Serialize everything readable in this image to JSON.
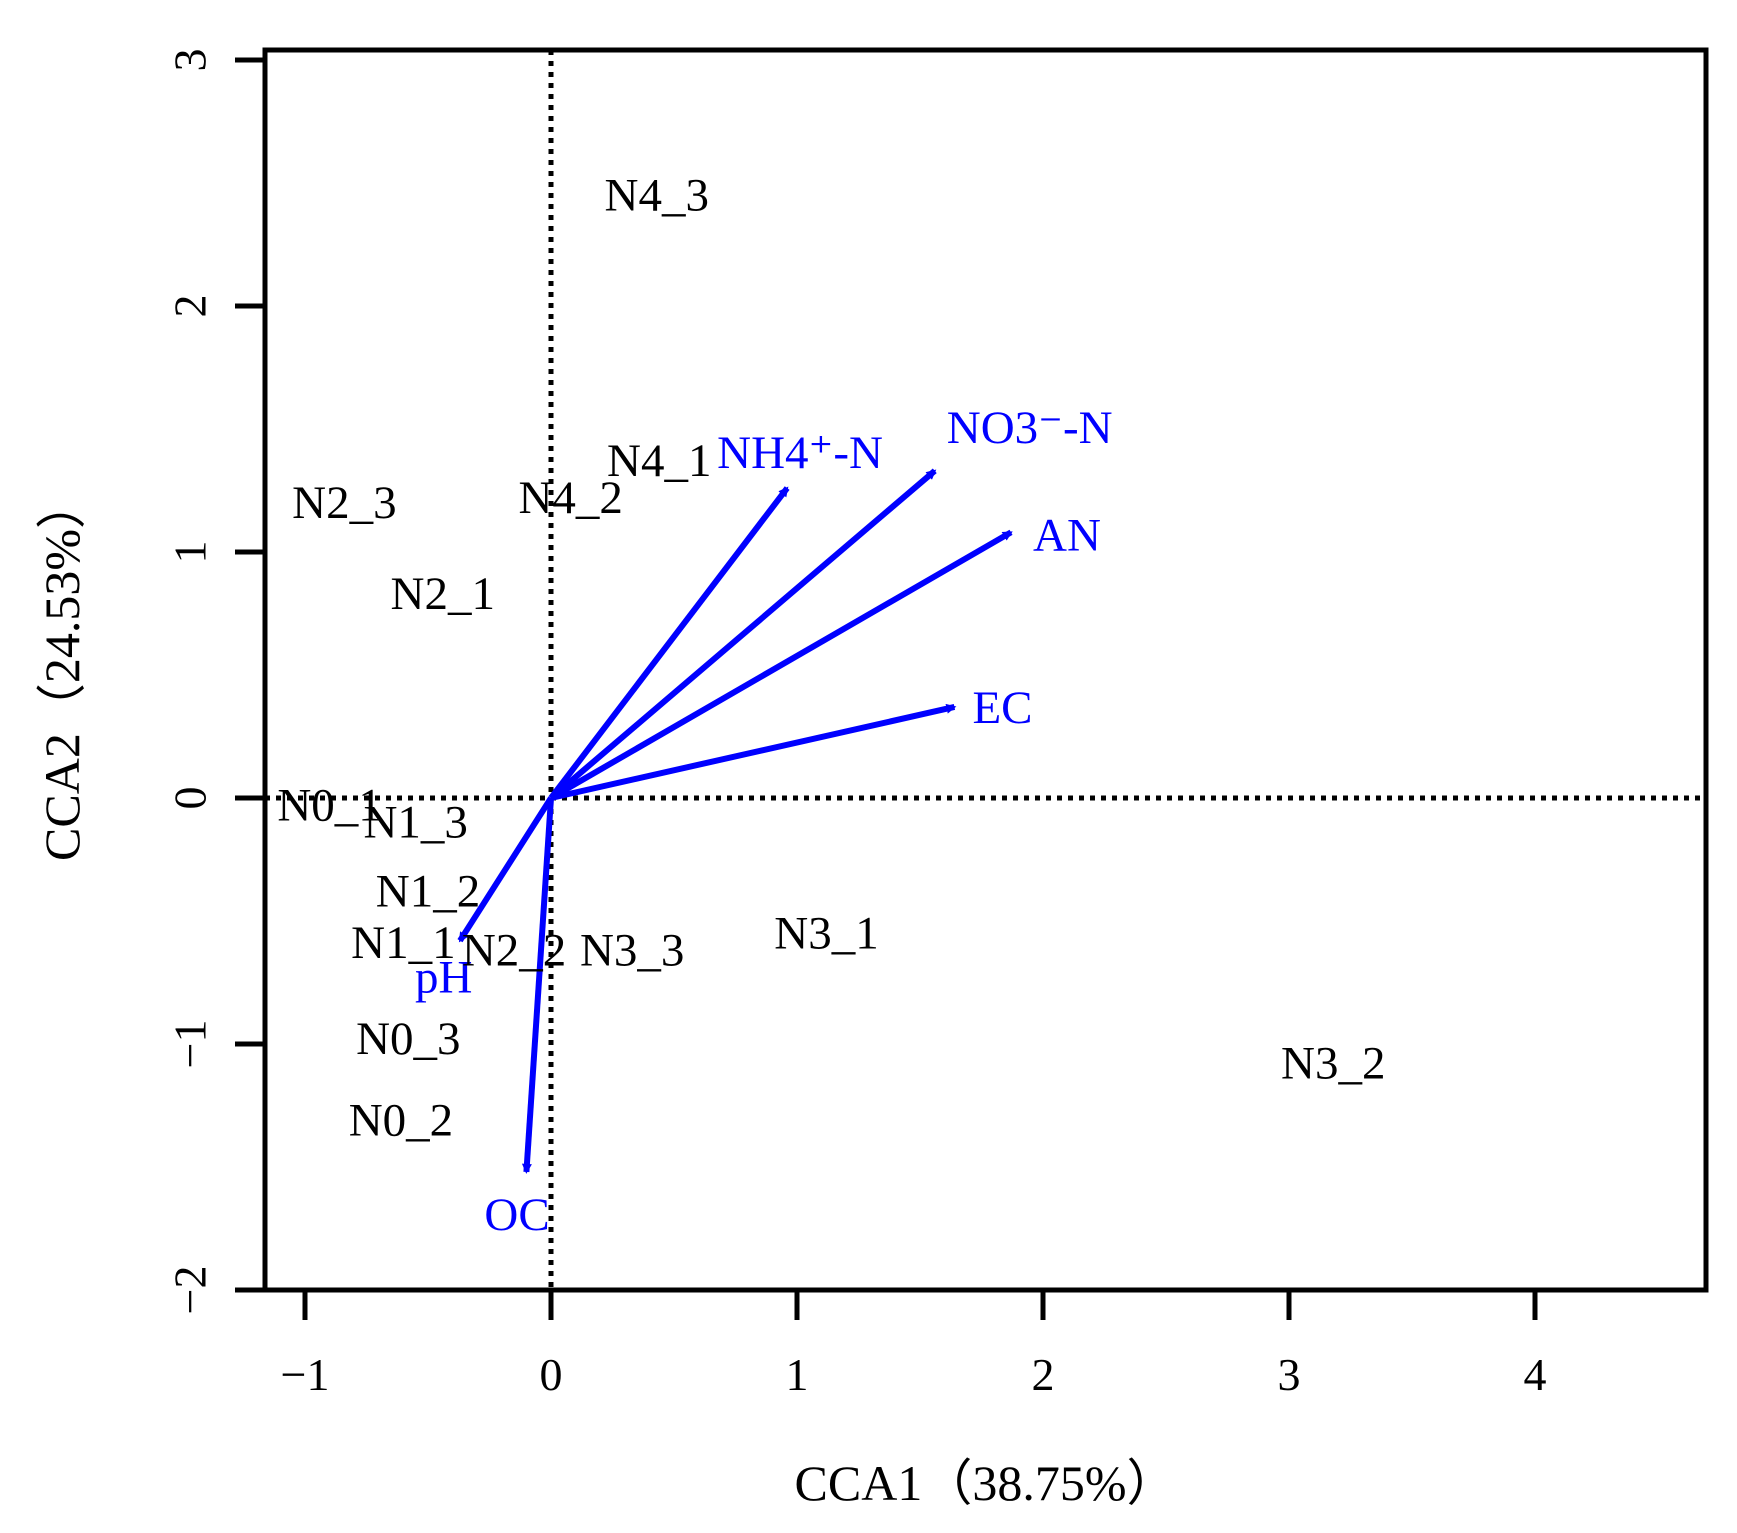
{
  "chart_data": {
    "type": "scatter",
    "title": "",
    "xlabel": "CCA1（38.75%）",
    "ylabel": "CCA2（24.53%）",
    "xlim": [
      -1.15,
      4.7
    ],
    "ylim": [
      -2.0,
      3.05
    ],
    "xticks": [
      -1,
      0,
      1,
      2,
      3,
      4
    ],
    "yticks": [
      -2,
      -1,
      0,
      1,
      2,
      3
    ],
    "xtick_labels": [
      "−1",
      "0",
      "1",
      "2",
      "3",
      "4"
    ],
    "ytick_labels": [
      "−2",
      "−1",
      "0",
      "1",
      "2",
      "3"
    ],
    "reference_lines": {
      "x": 0,
      "y": 0,
      "style": "dotted"
    },
    "sites": [
      {
        "label": "N4_3",
        "x": 0.43,
        "y": 2.45
      },
      {
        "label": "N4_1",
        "x": 0.44,
        "y": 1.37
      },
      {
        "label": "N4_2",
        "x": 0.08,
        "y": 1.22
      },
      {
        "label": "N2_3",
        "x": -0.84,
        "y": 1.2
      },
      {
        "label": "N2_1",
        "x": -0.44,
        "y": 0.83
      },
      {
        "label": "N0_1",
        "x": -0.9,
        "y": -0.03
      },
      {
        "label": "N1_3",
        "x": -0.55,
        "y": -0.1
      },
      {
        "label": "N1_2",
        "x": -0.5,
        "y": -0.38
      },
      {
        "label": "N1_1",
        "x": -0.6,
        "y": -0.59
      },
      {
        "label": "N2_2",
        "x": -0.15,
        "y": -0.62
      },
      {
        "label": "N3_3",
        "x": 0.33,
        "y": -0.62
      },
      {
        "label": "N3_1",
        "x": 1.12,
        "y": -0.55
      },
      {
        "label": "N0_3",
        "x": -0.58,
        "y": -0.98
      },
      {
        "label": "N0_2",
        "x": -0.61,
        "y": -1.31
      },
      {
        "label": "N3_2",
        "x": 3.18,
        "y": -1.08
      }
    ],
    "env_vectors": [
      {
        "label": "NH4⁺-N",
        "x": 0.96,
        "y": 1.26
      },
      {
        "label": "NO3⁻-N",
        "x": 1.56,
        "y": 1.33
      },
      {
        "label": "AN",
        "x": 1.87,
        "y": 1.08
      },
      {
        "label": "EC",
        "x": 1.64,
        "y": 0.37
      },
      {
        "label": "pH",
        "x": -0.37,
        "y": -0.58
      },
      {
        "label": "OC",
        "x": -0.1,
        "y": -1.52
      }
    ],
    "colors": {
      "sites": "#000000",
      "vectors": "#0000ff",
      "axes": "#000000"
    }
  }
}
